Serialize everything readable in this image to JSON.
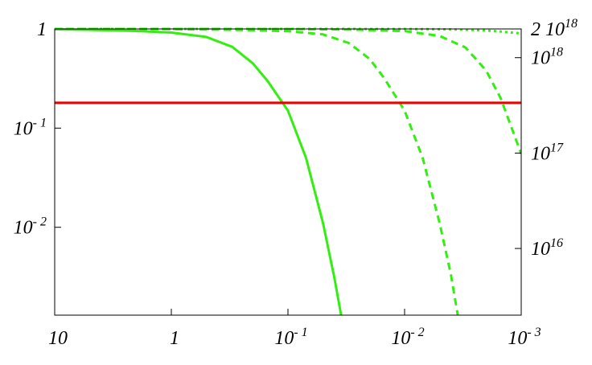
{
  "chart_data": {
    "type": "line",
    "title": "",
    "xlabel": "",
    "ylabel": "",
    "x_scale": "log",
    "x_reversed": true,
    "xlim": [
      10,
      0.001
    ],
    "y_scale": "log",
    "ylim": [
      0.0013,
      1
    ],
    "y2_scale": "log",
    "y2lim": [
      2000000000000000.0,
      2e+18
    ],
    "grid": false,
    "legend": "none",
    "x_ticks": [
      {
        "value": 10,
        "base": "10",
        "sup": ""
      },
      {
        "value": 1,
        "base": "1",
        "sup": ""
      },
      {
        "value": 0.1,
        "base": "10",
        "sup": "- 1"
      },
      {
        "value": 0.01,
        "base": "10",
        "sup": "- 2"
      },
      {
        "value": 0.001,
        "base": "10",
        "sup": "- 3"
      }
    ],
    "y_ticks": [
      {
        "value": 1,
        "base": "1",
        "sup": ""
      },
      {
        "value": 0.1,
        "base": "10",
        "sup": "- 1"
      },
      {
        "value": 0.01,
        "base": "10",
        "sup": "- 2"
      }
    ],
    "y2_ticks": [
      {
        "value": 2e+18,
        "base": "2 10",
        "sup": "18"
      },
      {
        "value": 1e+18,
        "base": "10",
        "sup": "18"
      },
      {
        "value": 1e+17,
        "base": "10",
        "sup": "17"
      },
      {
        "value": 1e+16,
        "base": "10",
        "sup": "16"
      }
    ],
    "series": [
      {
        "color": "#33ee11",
        "style": "solid",
        "x": [
          10,
          5,
          2,
          1,
          0.5,
          0.3,
          0.2,
          0.15,
          0.1,
          0.07,
          0.05,
          0.04,
          0.035
        ],
        "y": [
          0.99,
          0.98,
          0.955,
          0.92,
          0.83,
          0.66,
          0.45,
          0.3,
          0.15,
          0.05,
          0.011,
          0.0031,
          0.0013
        ]
      },
      {
        "color": "#33ee11",
        "style": "dashed",
        "x": [
          10,
          1,
          0.3,
          0.1,
          0.05,
          0.03,
          0.02,
          0.015,
          0.01,
          0.007,
          0.005,
          0.004,
          0.0035
        ],
        "y": [
          1,
          0.995,
          0.98,
          0.95,
          0.88,
          0.72,
          0.5,
          0.32,
          0.15,
          0.05,
          0.011,
          0.0033,
          0.0013
        ]
      },
      {
        "color": "#33ee11",
        "style": "dashed",
        "x": [
          10,
          1,
          0.1,
          0.03,
          0.01,
          0.005,
          0.003,
          0.002,
          0.0015,
          0.001
        ],
        "y": [
          1,
          1,
          0.998,
          0.985,
          0.95,
          0.85,
          0.65,
          0.38,
          0.2,
          0.055
        ]
      },
      {
        "color": "#33ee11",
        "style": "dotted",
        "x": [
          10,
          1,
          0.1,
          0.01,
          0.005,
          0.003,
          0.002,
          0.0015,
          0.001
        ],
        "y": [
          1,
          1,
          1,
          0.998,
          0.993,
          0.982,
          0.965,
          0.94,
          0.9
        ]
      },
      {
        "color": "#ee0000",
        "style": "solid",
        "x": [
          10,
          0.001
        ],
        "y": [
          0.18,
          0.18
        ]
      }
    ]
  }
}
